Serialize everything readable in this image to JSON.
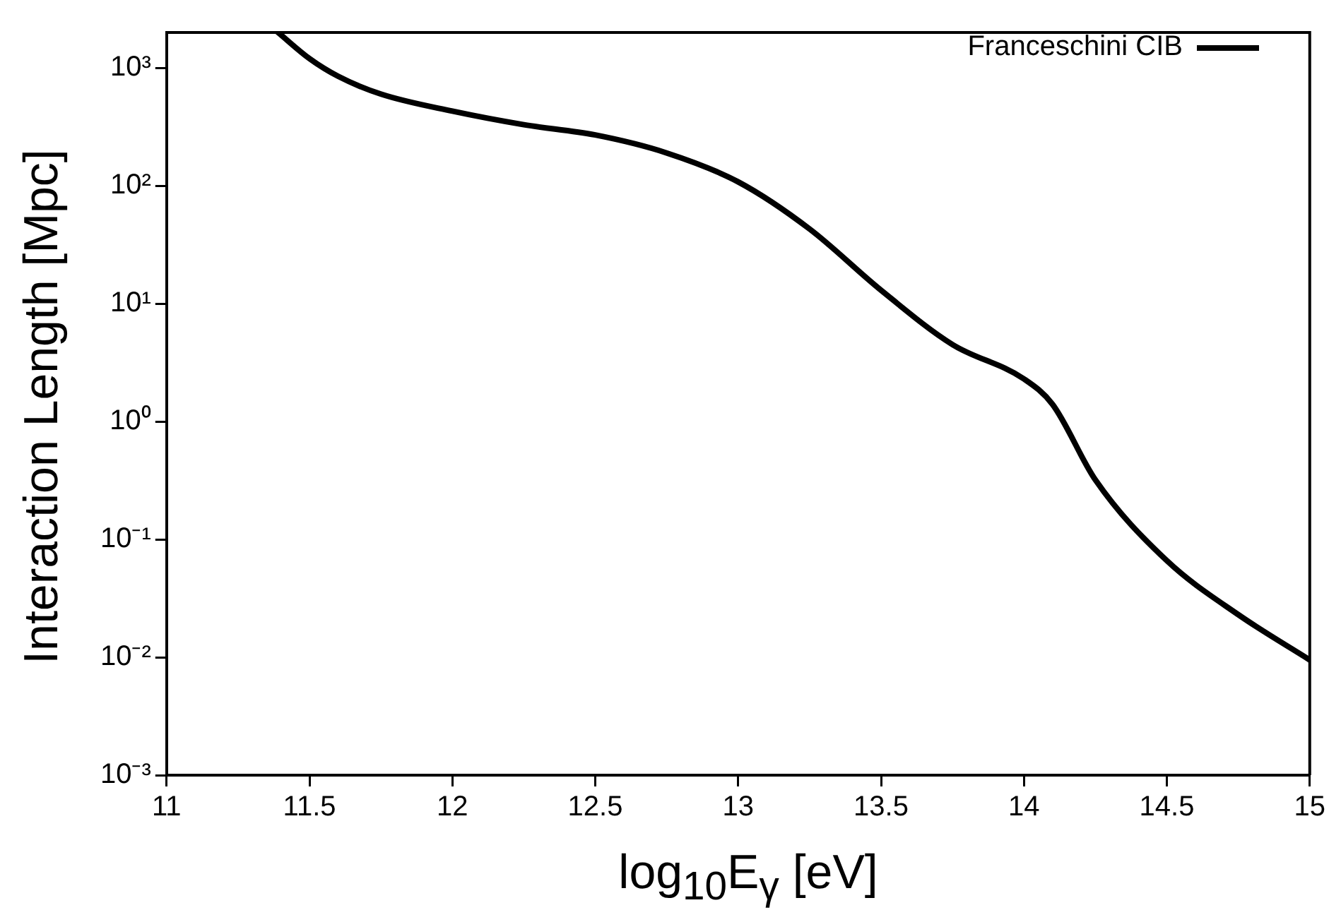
{
  "chart_data": {
    "type": "line",
    "xlabel": "log$_{10}$E$_{γ}$ [eV]",
    "ylabel": "Interaction Length [Mpc]",
    "x": [
      11.39,
      11.5,
      11.6,
      11.75,
      12,
      12.25,
      12.5,
      12.75,
      13,
      13.25,
      13.5,
      13.75,
      14,
      14.1,
      14.25,
      14.5,
      14.75,
      15
    ],
    "series": [
      {
        "name": "Franceschini CIB",
        "color": "#000000",
        "values": [
          2000,
          1200,
          850,
          600,
          430,
          330,
          270,
          190,
          108,
          43,
          13,
          4.5,
          2.3,
          1.4,
          0.32,
          0.066,
          0.023,
          0.0095
        ]
      }
    ],
    "xlim": [
      11,
      15
    ],
    "xticks": [
      11,
      11.5,
      12,
      12.5,
      13,
      13.5,
      14,
      14.5,
      15
    ],
    "ylim": [
      0.001,
      2000
    ],
    "yticks": [
      {
        "value": 0.001,
        "label": "10⁻³"
      },
      {
        "value": 0.01,
        "label": "10⁻²"
      },
      {
        "value": 0.1,
        "label": "10⁻¹"
      },
      {
        "value": 1,
        "label": "10⁰"
      },
      {
        "value": 10,
        "label": "10¹"
      },
      {
        "value": 100,
        "label": "10²"
      },
      {
        "value": 1000,
        "label": "10³"
      }
    ],
    "log": "y",
    "grid": false,
    "legend": "top right",
    "marker": "none",
    "line_style": "solid"
  }
}
